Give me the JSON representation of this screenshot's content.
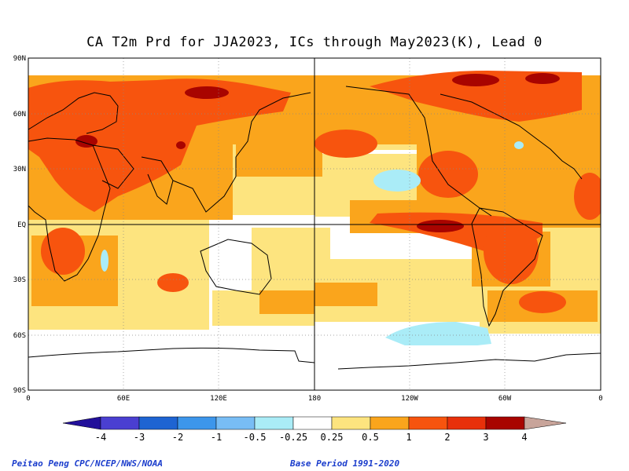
{
  "title": "CA T2m Prd for JJA2023, ICs through May2023(K), Lead 0",
  "y_ticks": [
    "90N",
    "60N",
    "30N",
    "EQ",
    "30S",
    "60S",
    "90S"
  ],
  "x_ticks": [
    "0",
    "60E",
    "120E",
    "180",
    "120W",
    "60W",
    "0"
  ],
  "colorbar": {
    "labels": [
      "-4",
      "-3",
      "-2",
      "-1",
      "-0.5",
      "-0.25",
      "0.25",
      "0.5",
      "1",
      "2",
      "3",
      "4"
    ],
    "colors": [
      "#22109a",
      "#4a3fd1",
      "#1e64d2",
      "#3c96eb",
      "#78bdf5",
      "#aaecf7",
      "#ffffff",
      "#fde47f",
      "#faa51c",
      "#f7540e",
      "#e8300a",
      "#a80400",
      "#c8a49a",
      "#7a4c32"
    ]
  },
  "footer": {
    "credit": "Peitao Peng CPC/NCEP/NWS/NOAA",
    "base_period": "Base Period 1991-2020"
  }
}
